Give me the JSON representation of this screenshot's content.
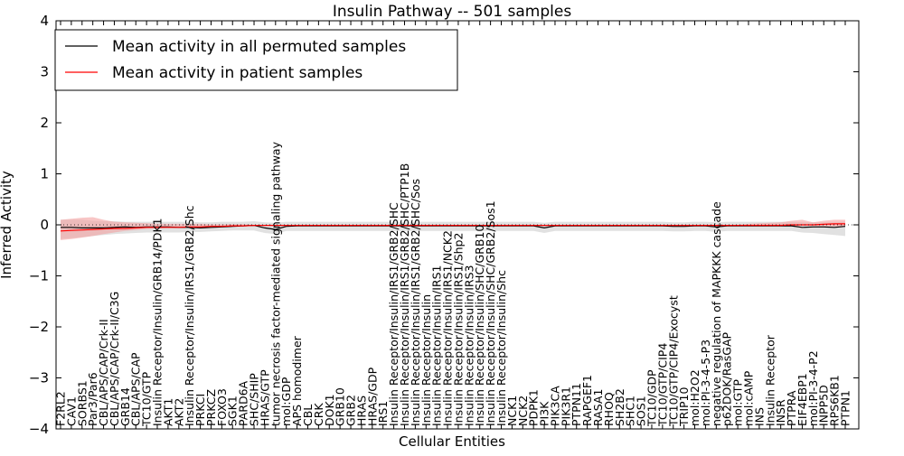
{
  "chart_data": {
    "type": "line",
    "title": "Insulin Pathway -- 501 samples",
    "xlabel": "Cellular Entities",
    "ylabel": "Inferred Activity",
    "ylim": [
      -4,
      4
    ],
    "yticks": [
      -4,
      -3,
      -2,
      -1,
      0,
      1,
      2,
      3,
      4
    ],
    "ytick_labels": [
      "−4",
      "−3",
      "−2",
      "−1",
      "0",
      "1",
      "2",
      "3",
      "4"
    ],
    "grid": false,
    "legend": "top-left",
    "categories": [
      "F2RL2",
      "CAV1",
      "SORBS1",
      "Par3/Par6",
      "CBL/APS/CAP/Crk-II",
      "CBL/APS/CAP/Crk-II/C3G",
      "GRB14",
      "CBL/APS/CAP",
      "TC10/GTP",
      "Insulin Receptor/Insulin/GRB14/PDK1",
      "AKT1",
      "AKT2",
      "Insulin Receptor/Insulin/IRS1/GRB2/Shc",
      "PRKCI",
      "PRKCZ",
      "FOXO3",
      "SGK1",
      "PARD6A",
      "SHC/SHIP",
      "HRAS/GTP",
      "tumor necrosis factor-mediated signaling pathway",
      "mol:GDP",
      "APS homodimer",
      "CBL",
      "CRK",
      "DOK1",
      "GRB10",
      "GRB2",
      "HRAS",
      "HRAS/GDP",
      "IRS1",
      "Insulin Receptor/Insulin/IRS1/GRB2/SHC",
      "Insulin Receptor/Insulin/IRS1/GRB2/SHC/PTP1B",
      "Insulin Receptor/Insulin/IRS1/GRB2/SHC/Sos",
      "Insulin Receptor/Insulin",
      "Insulin Receptor/Insulin/IRS1",
      "Insulin Receptor/Insulin/IRS1/NCK2",
      "Insulin Receptor/Insulin/IRS1/Shp2",
      "Insulin Receptor/Insulin/IRS3",
      "Insulin Receptor/Insulin/SHC/GRB10",
      "Insulin Receptor/Insulin/SHC/GRB2/Sos1",
      "Insulin Receptor/Insulin/Shc",
      "NCK1",
      "NCK2",
      "PDPK1",
      "PI3K",
      "PIK3CA",
      "PIK3R1",
      "PTPN11",
      "RAPGEF1",
      "RASA1",
      "RHOQ",
      "SH2B2",
      "SHC1",
      "SOS1",
      "TC10/GDP",
      "TC10/GTP/CIP4",
      "TC10/GTP/CIP4/Exocyst",
      "TRIP10",
      "mol:H2O2",
      "mol:PI-3-4-5-P3",
      "negative regulation of MAPKKK cascade",
      "p62DOK/RasGAP",
      "mol:GTP",
      "mol:cAMP",
      "INS",
      "Insulin Receptor",
      "INSR",
      "PTPRA",
      "EIF4EBP1",
      "mol:PI-3-4-P2",
      "INPP5D",
      "RPS6KB1",
      "PTPN1"
    ],
    "series": [
      {
        "name": "Mean activity in all permuted samples",
        "color": "#000000",
        "band_color": "#c8c8c8",
        "values": [
          -0.05,
          -0.05,
          -0.06,
          -0.06,
          -0.06,
          -0.05,
          -0.04,
          -0.05,
          -0.04,
          -0.04,
          -0.04,
          -0.05,
          -0.05,
          -0.06,
          -0.05,
          -0.04,
          -0.03,
          -0.02,
          -0.01,
          -0.06,
          -0.09,
          -0.03,
          -0.02,
          -0.02,
          -0.02,
          -0.02,
          -0.02,
          -0.02,
          -0.02,
          -0.02,
          -0.02,
          -0.02,
          -0.02,
          -0.02,
          -0.02,
          -0.02,
          -0.02,
          -0.02,
          -0.02,
          -0.02,
          -0.02,
          -0.02,
          -0.02,
          -0.02,
          -0.02,
          -0.06,
          -0.02,
          -0.02,
          -0.02,
          -0.02,
          -0.02,
          -0.02,
          -0.02,
          -0.02,
          -0.02,
          -0.02,
          -0.02,
          -0.03,
          -0.03,
          -0.02,
          -0.02,
          -0.04,
          -0.02,
          -0.02,
          -0.02,
          -0.02,
          -0.02,
          -0.02,
          -0.02,
          -0.05,
          -0.04,
          -0.04,
          -0.05,
          -0.03
        ],
        "lower": [
          -0.28,
          -0.26,
          -0.24,
          -0.22,
          -0.2,
          -0.18,
          -0.17,
          -0.16,
          -0.15,
          -0.15,
          -0.15,
          -0.15,
          -0.14,
          -0.14,
          -0.13,
          -0.12,
          -0.11,
          -0.11,
          -0.11,
          -0.16,
          -0.18,
          -0.12,
          -0.12,
          -0.12,
          -0.12,
          -0.12,
          -0.12,
          -0.12,
          -0.12,
          -0.12,
          -0.12,
          -0.12,
          -0.12,
          -0.12,
          -0.12,
          -0.12,
          -0.12,
          -0.12,
          -0.12,
          -0.12,
          -0.12,
          -0.12,
          -0.12,
          -0.12,
          -0.12,
          -0.16,
          -0.12,
          -0.12,
          -0.12,
          -0.12,
          -0.12,
          -0.12,
          -0.12,
          -0.12,
          -0.12,
          -0.12,
          -0.12,
          -0.13,
          -0.13,
          -0.12,
          -0.12,
          -0.14,
          -0.12,
          -0.12,
          -0.12,
          -0.12,
          -0.12,
          -0.12,
          -0.12,
          -0.15,
          -0.16,
          -0.18,
          -0.2,
          -0.22
        ],
        "upper": [
          0.1,
          0.1,
          0.1,
          0.08,
          0.07,
          0.07,
          0.06,
          0.06,
          0.06,
          0.06,
          0.06,
          0.06,
          0.06,
          0.05,
          0.05,
          0.06,
          0.06,
          0.06,
          0.07,
          0.05,
          0.04,
          0.06,
          0.06,
          0.06,
          0.06,
          0.06,
          0.06,
          0.06,
          0.06,
          0.06,
          0.06,
          0.06,
          0.06,
          0.06,
          0.06,
          0.06,
          0.06,
          0.06,
          0.06,
          0.06,
          0.06,
          0.06,
          0.06,
          0.06,
          0.06,
          0.04,
          0.06,
          0.06,
          0.06,
          0.06,
          0.06,
          0.06,
          0.06,
          0.06,
          0.06,
          0.06,
          0.06,
          0.05,
          0.05,
          0.06,
          0.06,
          0.05,
          0.06,
          0.06,
          0.06,
          0.06,
          0.06,
          0.06,
          0.06,
          0.05,
          0.05,
          0.05,
          0.05,
          0.06
        ]
      },
      {
        "name": "Mean activity in patient samples",
        "color": "#ff0000",
        "band_color": "#f4a0a0",
        "values": [
          -0.12,
          -0.11,
          -0.1,
          -0.09,
          -0.08,
          -0.07,
          -0.07,
          -0.06,
          -0.05,
          -0.05,
          -0.05,
          -0.05,
          -0.04,
          -0.04,
          -0.03,
          -0.03,
          -0.02,
          -0.02,
          -0.01,
          -0.01,
          -0.01,
          -0.01,
          -0.01,
          -0.01,
          -0.01,
          -0.01,
          -0.01,
          -0.01,
          -0.01,
          -0.01,
          -0.01,
          -0.01,
          -0.01,
          -0.01,
          -0.01,
          -0.01,
          -0.01,
          -0.01,
          -0.01,
          -0.01,
          -0.01,
          -0.01,
          -0.01,
          -0.01,
          -0.01,
          -0.01,
          -0.01,
          -0.01,
          -0.01,
          -0.01,
          -0.01,
          -0.01,
          -0.01,
          -0.01,
          -0.01,
          -0.01,
          -0.01,
          -0.01,
          -0.01,
          -0.01,
          -0.01,
          -0.01,
          -0.01,
          -0.01,
          -0.01,
          -0.01,
          -0.01,
          -0.01,
          0.0,
          0.0,
          0.0,
          0.01,
          0.02,
          0.02
        ],
        "lower": [
          -0.3,
          -0.28,
          -0.25,
          -0.22,
          -0.18,
          -0.15,
          -0.12,
          -0.1,
          -0.08,
          -0.07,
          -0.06,
          -0.06,
          -0.05,
          -0.05,
          -0.04,
          -0.04,
          -0.03,
          -0.03,
          -0.02,
          -0.02,
          -0.02,
          -0.02,
          -0.02,
          -0.02,
          -0.02,
          -0.02,
          -0.02,
          -0.02,
          -0.02,
          -0.02,
          -0.02,
          -0.02,
          -0.02,
          -0.02,
          -0.02,
          -0.02,
          -0.02,
          -0.02,
          -0.02,
          -0.02,
          -0.02,
          -0.02,
          -0.02,
          -0.02,
          -0.02,
          -0.02,
          -0.02,
          -0.02,
          -0.02,
          -0.02,
          -0.02,
          -0.02,
          -0.02,
          -0.02,
          -0.02,
          -0.02,
          -0.02,
          -0.02,
          -0.02,
          -0.02,
          -0.02,
          -0.02,
          -0.02,
          -0.02,
          -0.02,
          -0.02,
          -0.02,
          -0.03,
          -0.03,
          -0.02,
          -0.02,
          -0.03,
          -0.03,
          -0.04
        ],
        "upper": [
          0.1,
          0.12,
          0.14,
          0.15,
          0.1,
          0.06,
          0.05,
          0.04,
          0.03,
          0.02,
          0.02,
          0.02,
          0.02,
          0.02,
          0.01,
          0.01,
          0.01,
          0.01,
          0.0,
          0.0,
          0.0,
          0.0,
          0.0,
          0.0,
          0.0,
          0.0,
          0.0,
          0.0,
          0.0,
          0.0,
          0.0,
          0.0,
          0.0,
          0.0,
          0.0,
          0.0,
          0.0,
          0.0,
          0.0,
          0.0,
          0.0,
          0.0,
          0.0,
          0.0,
          0.0,
          0.0,
          0.0,
          0.0,
          0.0,
          0.0,
          0.0,
          0.0,
          0.0,
          0.0,
          0.0,
          0.0,
          0.0,
          0.0,
          0.0,
          0.0,
          0.0,
          0.0,
          0.0,
          0.0,
          0.02,
          0.03,
          0.04,
          0.05,
          0.08,
          0.1,
          0.05,
          0.08,
          0.1,
          0.1
        ]
      }
    ]
  }
}
